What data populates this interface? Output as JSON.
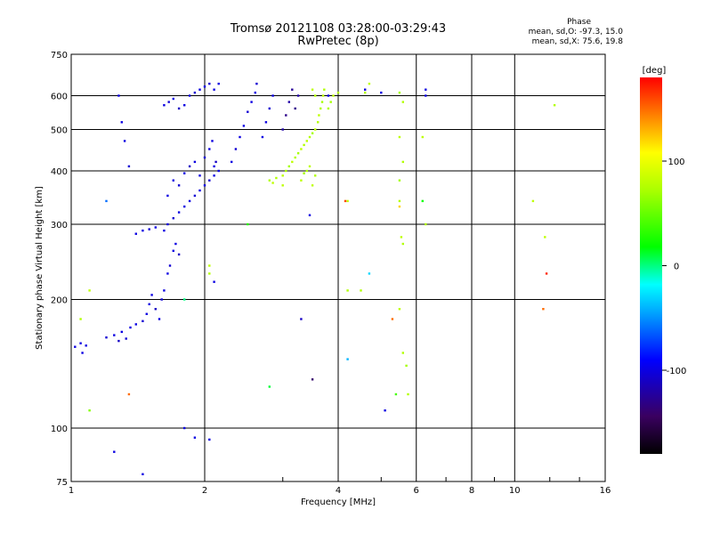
{
  "header": {
    "title_line1": "Tromsø 20121108 03:28:00-03:29:43",
    "title_line2": "RwPretec (8p)",
    "phase_title": "Phase",
    "stats_o": "mean, sd,O: -97.3, 15.0",
    "stats_x": "mean, sd,X:  75.6, 19.8"
  },
  "colorbar": {
    "unit": "[deg]",
    "min": -180,
    "max": 180,
    "ticks": [
      {
        "value": 100,
        "label": "100"
      },
      {
        "value": 0,
        "label": "0"
      },
      {
        "value": -100,
        "label": "-100"
      }
    ]
  },
  "chart_data": {
    "type": "scatter",
    "xlabel": "Frequency [MHz]",
    "ylabel": "Stationary phase Virtual Height [km]",
    "xscale": "log",
    "yscale": "log",
    "xlim": [
      1,
      16
    ],
    "ylim": [
      75,
      750
    ],
    "x_ticks": [
      1,
      2,
      4,
      6,
      8,
      10,
      16
    ],
    "x_tick_labels": [
      "1",
      "2",
      "4",
      "6",
      "8",
      "10",
      "16"
    ],
    "x_gridlines": [
      2,
      4,
      6,
      8,
      10
    ],
    "y_ticks": [
      75,
      100,
      200,
      300,
      400,
      500,
      600,
      750
    ],
    "y_tick_labels": [
      "75",
      "100",
      "200",
      "300",
      "400",
      "500",
      "600",
      "750"
    ],
    "y_gridlines": [
      100,
      200,
      300,
      400,
      500,
      600
    ],
    "grid": true,
    "color_encodes": "phase [deg]",
    "series": [
      {
        "mode": "O",
        "points": [
          [
            1.02,
            155,
            -100
          ],
          [
            1.05,
            158,
            -100
          ],
          [
            1.06,
            150,
            -100
          ],
          [
            1.08,
            156,
            -100
          ],
          [
            1.2,
            163,
            -105
          ],
          [
            1.25,
            165,
            -100
          ],
          [
            1.28,
            160,
            -110
          ],
          [
            1.3,
            168,
            -100
          ],
          [
            1.33,
            162,
            -105
          ],
          [
            1.36,
            172,
            -100
          ],
          [
            1.4,
            175,
            -100
          ],
          [
            1.45,
            178,
            -105
          ],
          [
            1.48,
            185,
            -100
          ],
          [
            1.5,
            195,
            -100
          ],
          [
            1.52,
            205,
            -100
          ],
          [
            1.55,
            190,
            -110
          ],
          [
            1.58,
            180,
            -100
          ],
          [
            1.6,
            200,
            -105
          ],
          [
            1.62,
            210,
            -100
          ],
          [
            1.65,
            230,
            -100
          ],
          [
            1.67,
            240,
            -105
          ],
          [
            1.7,
            260,
            -100
          ],
          [
            1.72,
            270,
            -100
          ],
          [
            1.75,
            255,
            -110
          ],
          [
            1.62,
            290,
            -100
          ],
          [
            1.65,
            300,
            -100
          ],
          [
            1.7,
            310,
            -105
          ],
          [
            1.75,
            320,
            -100
          ],
          [
            1.8,
            330,
            -100
          ],
          [
            1.85,
            340,
            -100
          ],
          [
            1.9,
            350,
            -105
          ],
          [
            1.95,
            360,
            -100
          ],
          [
            2.0,
            370,
            -100
          ],
          [
            2.05,
            380,
            -105
          ],
          [
            2.1,
            390,
            -100
          ],
          [
            2.15,
            400,
            -100
          ],
          [
            1.65,
            350,
            -100
          ],
          [
            1.7,
            380,
            -100
          ],
          [
            1.75,
            370,
            -105
          ],
          [
            1.8,
            395,
            -100
          ],
          [
            1.85,
            410,
            -110
          ],
          [
            1.9,
            420,
            -100
          ],
          [
            1.95,
            390,
            -100
          ],
          [
            2.0,
            430,
            -105
          ],
          [
            2.05,
            450,
            -100
          ],
          [
            2.08,
            470,
            -100
          ],
          [
            2.1,
            410,
            -100
          ],
          [
            2.12,
            420,
            -110
          ],
          [
            1.4,
            285,
            -100
          ],
          [
            1.45,
            290,
            -100
          ],
          [
            1.5,
            292,
            -105
          ],
          [
            1.55,
            295,
            -100
          ],
          [
            1.62,
            570,
            -100
          ],
          [
            1.66,
            580,
            -105
          ],
          [
            1.7,
            590,
            -100
          ],
          [
            1.75,
            560,
            -110
          ],
          [
            1.8,
            570,
            -100
          ],
          [
            1.85,
            600,
            -100
          ],
          [
            1.9,
            610,
            -105
          ],
          [
            1.95,
            620,
            -100
          ],
          [
            2.0,
            630,
            -100
          ],
          [
            2.05,
            640,
            -105
          ],
          [
            2.1,
            620,
            -100
          ],
          [
            2.15,
            640,
            -100
          ],
          [
            2.3,
            420,
            -100
          ],
          [
            2.35,
            450,
            -105
          ],
          [
            2.4,
            480,
            -100
          ],
          [
            2.45,
            510,
            -100
          ],
          [
            2.5,
            550,
            -105
          ],
          [
            2.55,
            580,
            -100
          ],
          [
            2.6,
            610,
            -100
          ],
          [
            2.62,
            640,
            -105
          ],
          [
            2.7,
            480,
            -100
          ],
          [
            2.75,
            520,
            -100
          ],
          [
            2.8,
            560,
            -105
          ],
          [
            2.85,
            600,
            -100
          ],
          [
            3.0,
            500,
            -120
          ],
          [
            3.05,
            540,
            -130
          ],
          [
            3.1,
            580,
            -120
          ],
          [
            3.15,
            620,
            -125
          ],
          [
            3.2,
            560,
            -130
          ],
          [
            3.25,
            600,
            -120
          ],
          [
            1.3,
            520,
            -100
          ],
          [
            1.32,
            470,
            -100
          ],
          [
            1.35,
            410,
            -105
          ],
          [
            1.28,
            600,
            -100
          ],
          [
            1.9,
            95,
            -100
          ],
          [
            1.25,
            88,
            -100
          ],
          [
            2.05,
            94,
            -100
          ],
          [
            2.1,
            220,
            -100
          ],
          [
            1.45,
            78,
            -100
          ],
          [
            1.8,
            100,
            -100
          ],
          [
            3.45,
            315,
            -100
          ],
          [
            3.3,
            180,
            -110
          ],
          [
            5.1,
            110,
            -100
          ],
          [
            4.6,
            620,
            -100
          ],
          [
            5.0,
            610,
            -100
          ],
          [
            6.3,
            600,
            -100
          ],
          [
            6.3,
            620,
            -100
          ],
          [
            3.8,
            600,
            -100
          ]
        ]
      },
      {
        "mode": "X",
        "points": [
          [
            3.0,
            390,
            80
          ],
          [
            3.05,
            400,
            75
          ],
          [
            3.1,
            410,
            70
          ],
          [
            3.15,
            420,
            80
          ],
          [
            3.2,
            430,
            75
          ],
          [
            3.25,
            440,
            70
          ],
          [
            3.3,
            450,
            80
          ],
          [
            3.35,
            460,
            75
          ],
          [
            3.4,
            470,
            80
          ],
          [
            3.45,
            480,
            75
          ],
          [
            3.5,
            490,
            70
          ],
          [
            3.55,
            500,
            80
          ],
          [
            3.6,
            520,
            75
          ],
          [
            3.62,
            540,
            80
          ],
          [
            3.65,
            560,
            75
          ],
          [
            3.68,
            580,
            70
          ],
          [
            3.7,
            600,
            80
          ],
          [
            3.72,
            620,
            75
          ],
          [
            3.5,
            620,
            80
          ],
          [
            3.55,
            600,
            75
          ],
          [
            3.3,
            380,
            80
          ],
          [
            3.35,
            395,
            70
          ],
          [
            3.4,
            400,
            75
          ],
          [
            3.45,
            410,
            80
          ],
          [
            2.8,
            380,
            75
          ],
          [
            2.85,
            375,
            80
          ],
          [
            2.9,
            385,
            75
          ],
          [
            3.0,
            370,
            80
          ],
          [
            3.8,
            560,
            75
          ],
          [
            3.85,
            580,
            70
          ],
          [
            3.9,
            600,
            80
          ],
          [
            4.0,
            610,
            75
          ],
          [
            4.7,
            640,
            80
          ],
          [
            4.6,
            610,
            75
          ],
          [
            5.5,
            610,
            70
          ],
          [
            5.6,
            580,
            75
          ],
          [
            5.5,
            480,
            80
          ],
          [
            5.6,
            420,
            75
          ],
          [
            5.5,
            380,
            70
          ],
          [
            5.5,
            340,
            75
          ],
          [
            5.55,
            280,
            80
          ],
          [
            5.6,
            270,
            75
          ],
          [
            5.5,
            190,
            80
          ],
          [
            5.6,
            150,
            75
          ],
          [
            5.7,
            140,
            70
          ],
          [
            5.75,
            120,
            75
          ],
          [
            4.2,
            340,
            80
          ],
          [
            4.5,
            210,
            75
          ],
          [
            6.2,
            480,
            80
          ],
          [
            6.3,
            300,
            75
          ],
          [
            11.0,
            340,
            80
          ],
          [
            12.3,
            570,
            75
          ],
          [
            11.7,
            280,
            80
          ],
          [
            4.2,
            210,
            75
          ],
          [
            1.1,
            210,
            80
          ],
          [
            1.05,
            180,
            75
          ],
          [
            2.05,
            240,
            80
          ],
          [
            2.05,
            230,
            75
          ],
          [
            3.5,
            370,
            80
          ],
          [
            3.55,
            390,
            75
          ]
        ]
      },
      {
        "mode": "other",
        "points": [
          [
            1.8,
            200,
            0
          ],
          [
            1.2,
            340,
            -60
          ],
          [
            4.15,
            340,
            160
          ],
          [
            5.3,
            180,
            150
          ],
          [
            5.4,
            120,
            40
          ],
          [
            2.8,
            125,
            10
          ],
          [
            3.5,
            130,
            -140
          ],
          [
            4.2,
            145,
            -40
          ],
          [
            4.7,
            230,
            -30
          ],
          [
            11.8,
            230,
            170
          ],
          [
            11.6,
            190,
            150
          ],
          [
            1.35,
            120,
            150
          ],
          [
            1.1,
            110,
            60
          ],
          [
            6.2,
            340,
            20
          ],
          [
            5.5,
            330,
            120
          ],
          [
            2.5,
            300,
            30
          ]
        ]
      }
    ]
  }
}
